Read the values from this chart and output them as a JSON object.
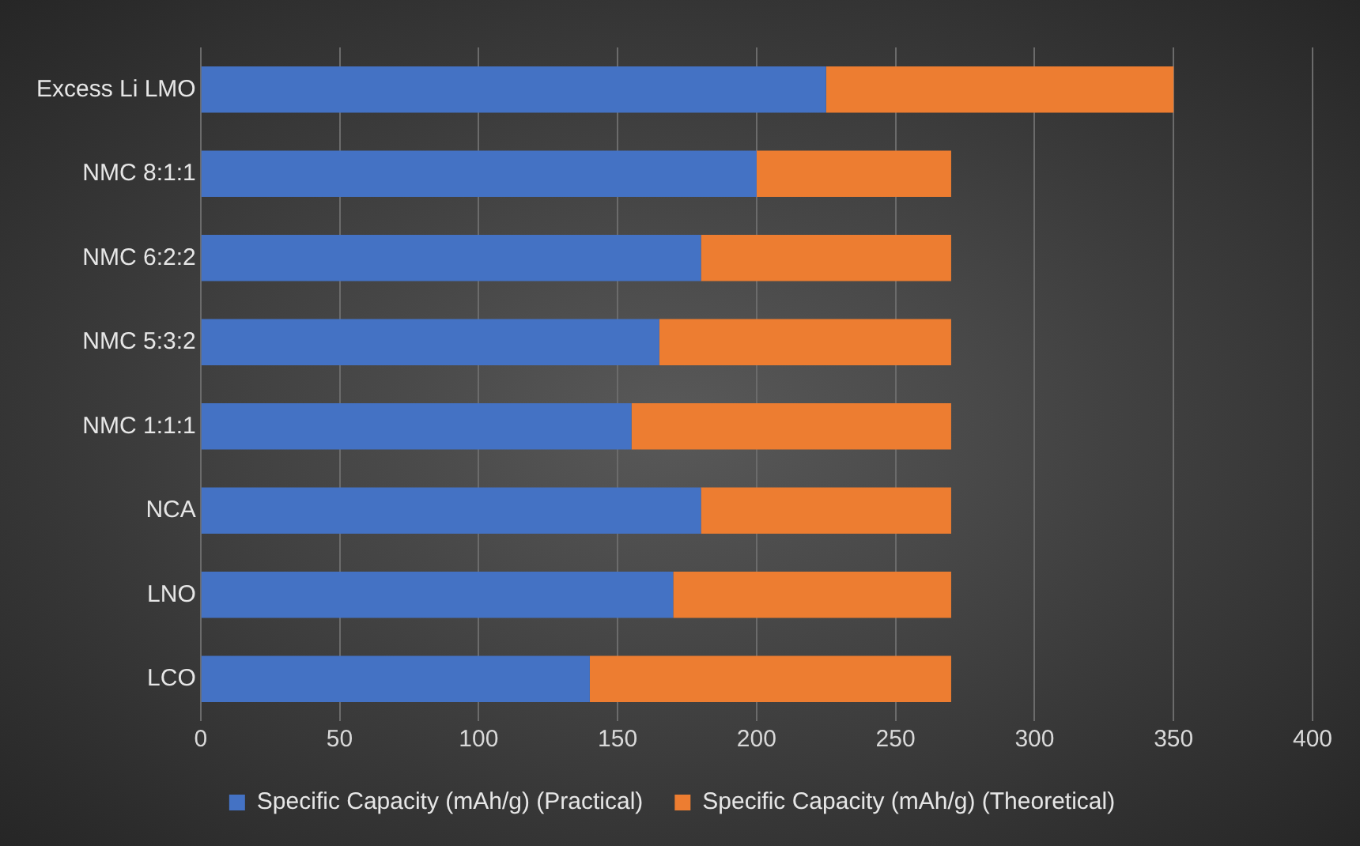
{
  "chart_data": {
    "type": "bar",
    "orientation": "horizontal",
    "stacked": true,
    "categories": [
      "Excess Li LMO",
      "NMC 8:1:1",
      "NMC 6:2:2",
      "NMC 5:3:2",
      "NMC 1:1:1",
      "NCA",
      "LNO",
      "LCO"
    ],
    "series": [
      {
        "name": "Specific Capacity (mAh/g) (Practical)",
        "color": "#4472c4",
        "values": [
          225,
          200,
          180,
          165,
          155,
          180,
          170,
          140
        ]
      },
      {
        "name": "Specific Capacity (mAh/g) (Theoretical)",
        "color": "#ed7d31",
        "values": [
          125,
          70,
          90,
          105,
          115,
          90,
          100,
          130
        ]
      }
    ],
    "xlim": [
      0,
      400
    ],
    "xticks": [
      0,
      50,
      100,
      150,
      200,
      250,
      300,
      350,
      400
    ],
    "grid": "x",
    "legend": "bottom"
  }
}
